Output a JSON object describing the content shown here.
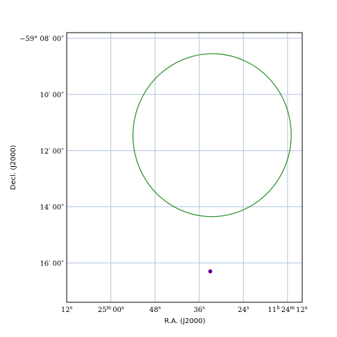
{
  "chart_data": {
    "type": "scatter",
    "title": "",
    "xlabel": "R.A. (J2000)",
    "ylabel": "Decl. (J2000)",
    "grid": true,
    "colors": {
      "grid": "#b0c4de",
      "ellipse": "#228b22",
      "marker": "#0000ff",
      "marker_edge": "#ff0000"
    },
    "x_ticks": [
      {
        "value": 12,
        "main": "12",
        "sup": "s",
        "prefix": ""
      },
      {
        "value": 0,
        "main": "25",
        "sup": "m",
        "rest": "00",
        "rest_sup": "s"
      },
      {
        "value": -12,
        "main": "48",
        "sup": "s"
      },
      {
        "value": -24,
        "main": "36",
        "sup": "s"
      },
      {
        "value": -36,
        "main": "24",
        "sup": "s"
      },
      {
        "value": -48,
        "main": "11",
        "sup": "h",
        "rest": "24",
        "rest_sup": "m",
        "rest2": "12",
        "rest2_sup": "s"
      }
    ],
    "y_ticks": [
      {
        "value": 0,
        "label": "−59° 08′ 00″"
      },
      {
        "value": -2,
        "label": "10′ 00″"
      },
      {
        "value": -4,
        "label": "12′ 00″"
      },
      {
        "value": -6,
        "label": "14′ 00″"
      },
      {
        "value": -8,
        "label": "16′ 00″"
      }
    ],
    "xlim": [
      12,
      -52
    ],
    "ylim": [
      -9.4,
      0.2
    ],
    "ellipse": {
      "cx": -27.5,
      "cy": -3.45,
      "rx": 21.5,
      "ry": 2.9,
      "angle_deg": 4
    },
    "point": {
      "x": -27,
      "y": -8.3
    }
  }
}
